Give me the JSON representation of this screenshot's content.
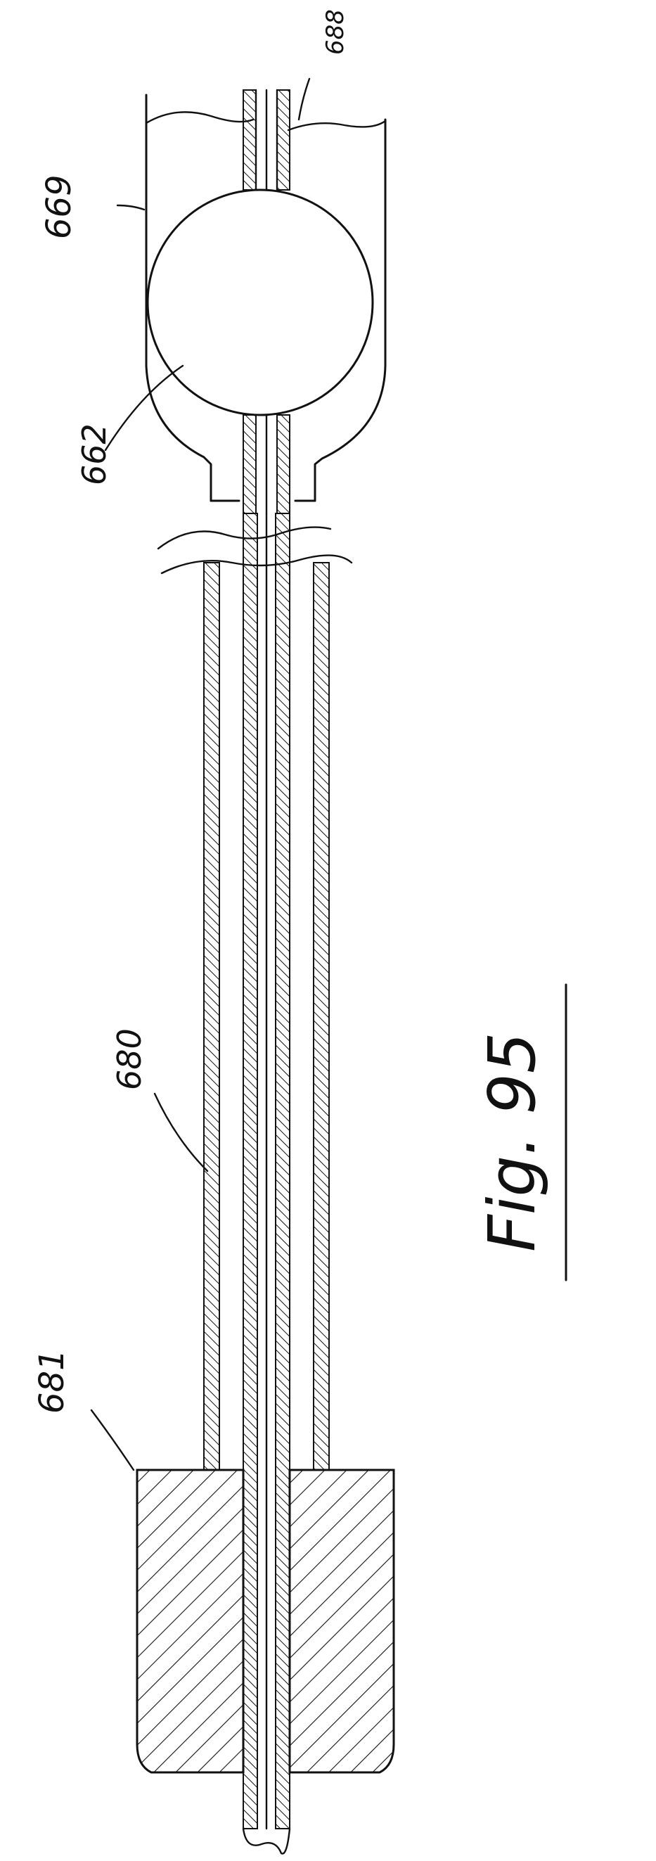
{
  "figure": {
    "caption": "Fig. 95",
    "labels": {
      "l669": "669",
      "l688": "688",
      "l662": "662",
      "l680": "680",
      "l681": "681"
    }
  },
  "colors": {
    "ink": "#111111",
    "paper": "#ffffff"
  }
}
